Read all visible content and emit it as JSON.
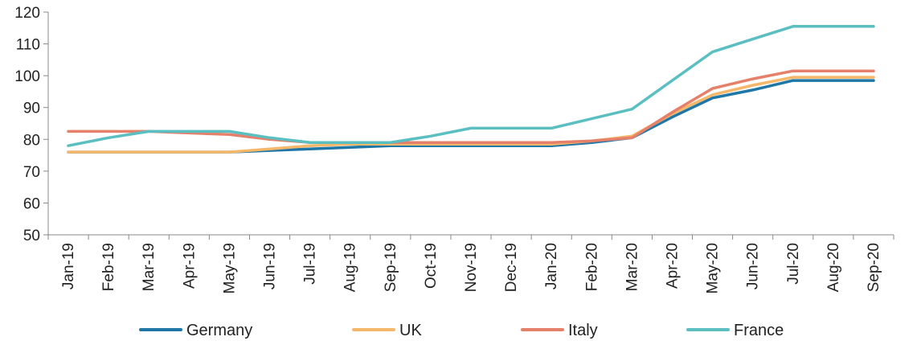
{
  "chart_data": {
    "type": "line",
    "title": "",
    "xlabel": "",
    "ylabel": "",
    "ylim": [
      50,
      120
    ],
    "yticks": [
      50,
      60,
      70,
      80,
      90,
      100,
      110,
      120
    ],
    "grid": false,
    "legend_position": "bottom",
    "categories": [
      "Jan-19",
      "Feb-19",
      "Mar-19",
      "Apr-19",
      "May-19",
      "Jun-19",
      "Jul-19",
      "Aug-19",
      "Sep-19",
      "Oct-19",
      "Nov-19",
      "Dec-19",
      "Jan-20",
      "Feb-20",
      "Mar-20",
      "Apr-20",
      "May-20",
      "Jun-20",
      "Jul-20",
      "Aug-20",
      "Sep-20"
    ],
    "series": [
      {
        "name": "Germany",
        "color": "#1f77a8",
        "values": [
          76,
          76,
          76,
          76,
          76,
          76.5,
          77,
          77.5,
          78,
          78,
          78,
          78,
          78,
          79,
          80.5,
          87,
          93,
          95.5,
          98.5,
          98.5,
          98.5
        ]
      },
      {
        "name": "UK",
        "color": "#f5b86b",
        "values": [
          76,
          76,
          76,
          76,
          76,
          77,
          78,
          78.5,
          78.5,
          78.5,
          78.5,
          78.5,
          78.5,
          79.5,
          81,
          88,
          94,
          97,
          99.5,
          99.5,
          99.5
        ]
      },
      {
        "name": "Italy",
        "color": "#e5806a",
        "values": [
          82.5,
          82.5,
          82.5,
          82,
          81.5,
          80,
          79,
          79,
          79,
          79,
          79,
          79,
          79,
          79.5,
          80.5,
          88.5,
          96,
          99,
          101.5,
          101.5,
          101.5
        ]
      },
      {
        "name": "France",
        "color": "#5bbfc2",
        "values": [
          78,
          80.5,
          82.5,
          82.5,
          82.5,
          80.5,
          79,
          79,
          79,
          81,
          83.5,
          83.5,
          83.5,
          86.5,
          89.5,
          98.5,
          107.5,
          111.5,
          115.5,
          115.5,
          115.5
        ]
      }
    ]
  }
}
